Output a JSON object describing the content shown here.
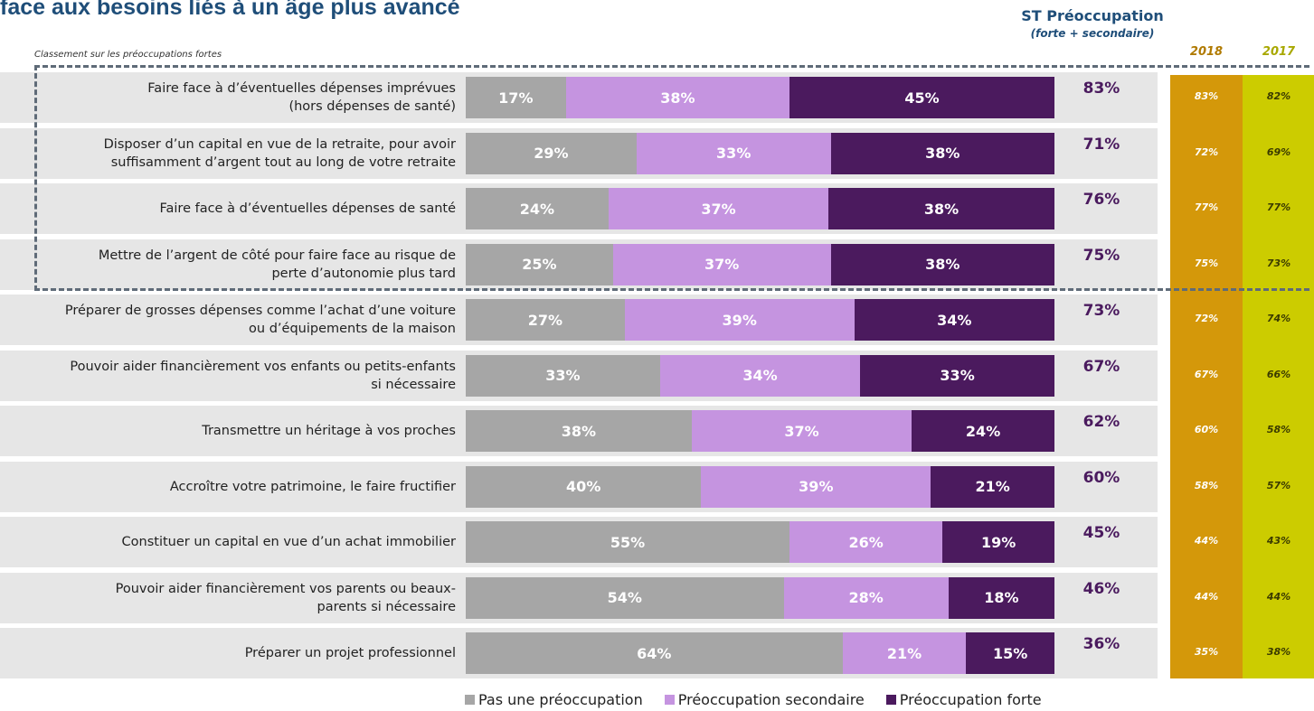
{
  "title": "face aux besoins liés à un âge plus avancé",
  "note": "Classement sur les préoccupations fortes",
  "st_header": "ST Préoccupation",
  "st_subheader": "(forte + secondaire)",
  "chart_data": {
    "type": "bar",
    "orientation": "horizontal",
    "stacked": true,
    "categories": [
      "Faire face à d’éventuelles dépenses imprévues\n(hors dépenses de santé)",
      "Disposer d’un capital en vue de la retraite, pour avoir\nsuffisamment d’argent tout au long de votre retraite",
      "Faire face à d’éventuelles dépenses de santé",
      "Mettre de l’argent de côté pour faire face au risque de\nperte d’autonomie plus tard",
      "Préparer de grosses dépenses comme l’achat d’une voiture\nou d’équipements de la maison",
      "Pouvoir aider financièrement vos enfants ou petits-enfants\nsi nécessaire",
      "Transmettre un héritage à vos proches",
      "Accroître votre patrimoine, le faire fructifier",
      "Constituer un capital en vue d’un achat immobilier",
      "Pouvoir aider financièrement vos parents ou beaux-\nparents si nécessaire",
      "Préparer un projet professionnel"
    ],
    "series": [
      {
        "name": "Pas une préoccupation",
        "color": "#a6a6a6",
        "values": [
          17,
          29,
          24,
          25,
          27,
          33,
          38,
          40,
          55,
          54,
          64
        ]
      },
      {
        "name": "Préoccupation secondaire",
        "color": "#c594e0",
        "values": [
          38,
          33,
          37,
          37,
          39,
          34,
          37,
          39,
          26,
          28,
          21
        ]
      },
      {
        "name": "Préoccupation forte",
        "color": "#4b1a5e",
        "values": [
          45,
          38,
          38,
          38,
          34,
          33,
          24,
          21,
          19,
          18,
          15
        ]
      }
    ],
    "st_totals": [
      83,
      71,
      76,
      75,
      73,
      67,
      62,
      60,
      45,
      46,
      36
    ],
    "history": {
      "2018": [
        83,
        72,
        77,
        75,
        72,
        67,
        60,
        58,
        44,
        44,
        35
      ],
      "2017": [
        82,
        69,
        77,
        73,
        74,
        66,
        58,
        57,
        43,
        44,
        38
      ]
    },
    "history_labels": [
      "2018",
      "2017"
    ],
    "history_colors": {
      "2018": "#d4980a",
      "2017": "#cccc00"
    },
    "unit": "%",
    "xlim": [
      0,
      100
    ],
    "legend_position": "bottom"
  }
}
